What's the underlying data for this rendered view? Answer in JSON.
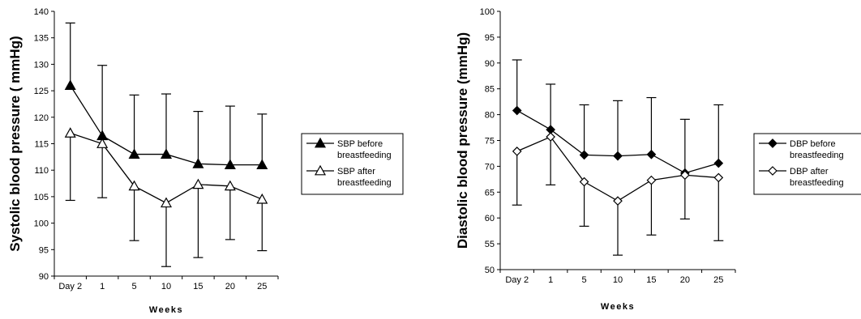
{
  "chart_data": [
    {
      "type": "line",
      "title": "",
      "xlabel": "Weeks",
      "ylabel": "Systolic blood pressure ( mmHg)",
      "ylim": [
        90,
        140
      ],
      "ytick_step": 5,
      "categories": [
        "Day 2",
        "1",
        "5",
        "10",
        "15",
        "20",
        "25"
      ],
      "error_bars": "one-sided (up for before, down for after)",
      "legend_position": "right",
      "series": [
        {
          "name": "SBP before breastfeeding",
          "legend_lines": [
            "SBP before",
            "breastfeeding"
          ],
          "marker": "filled-triangle",
          "values": [
            126,
            116.5,
            113,
            113,
            111.2,
            111,
            111
          ],
          "error_upper": [
            137.8,
            129.8,
            124.2,
            124.4,
            121.1,
            122.1,
            120.6
          ]
        },
        {
          "name": "SBP after breastfeeding",
          "legend_lines": [
            "SBP after",
            "breastfeeding"
          ],
          "marker": "open-triangle",
          "values": [
            117,
            115,
            107,
            103.8,
            107.3,
            107,
            104.5
          ],
          "error_lower": [
            104.3,
            104.8,
            96.7,
            91.8,
            93.5,
            96.9,
            94.8
          ]
        }
      ]
    },
    {
      "type": "line",
      "title": "",
      "xlabel": "Weeks",
      "ylabel": "Diastolic blood pressure (mmHg)",
      "ylim": [
        50,
        100
      ],
      "ytick_step": 5,
      "categories": [
        "Day 2",
        "1",
        "5",
        "10",
        "15",
        "20",
        "25"
      ],
      "error_bars": "one-sided (up for before, down for after)",
      "legend_position": "right",
      "series": [
        {
          "name": "DBP before breastfeeding",
          "legend_lines": [
            "DBP before",
            "breastfeeding"
          ],
          "marker": "filled-diamond",
          "values": [
            80.8,
            77.1,
            72.2,
            72,
            72.3,
            68.7,
            70.6
          ],
          "error_upper": [
            90.6,
            85.9,
            81.9,
            82.7,
            83.3,
            79.1,
            81.9
          ]
        },
        {
          "name": "DBP after breastfeeding",
          "legend_lines": [
            "DBP after",
            "breastfeeding"
          ],
          "marker": "open-diamond",
          "values": [
            72.9,
            75.7,
            67,
            63.3,
            67.3,
            68.3,
            67.8
          ],
          "error_lower": [
            62.5,
            66.4,
            58.4,
            52.8,
            56.7,
            59.8,
            55.6
          ]
        }
      ]
    }
  ]
}
